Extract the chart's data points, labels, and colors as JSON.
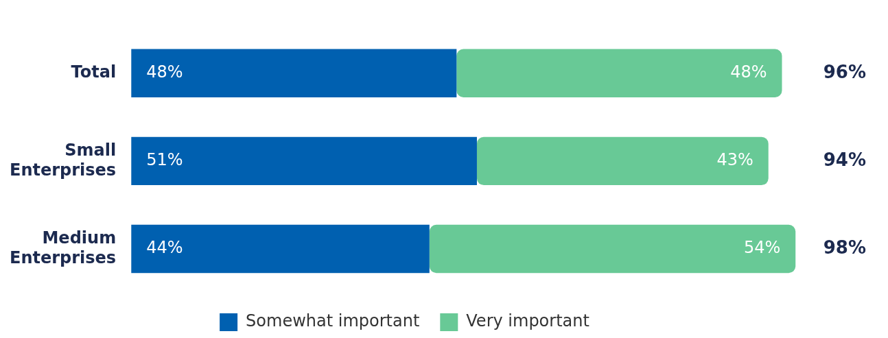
{
  "chart_data": {
    "type": "bar",
    "orientation": "horizontal",
    "stacked": true,
    "categories": [
      "Total",
      "Small Enterprises",
      "Medium Enterprises"
    ],
    "series": [
      {
        "name": "Somewhat important",
        "color": "#0060b0",
        "values": [
          48,
          51,
          44
        ],
        "value_labels": [
          "48%",
          "51%",
          "44%"
        ]
      },
      {
        "name": "Very important",
        "color": "#68c996",
        "values": [
          48,
          43,
          54
        ],
        "value_labels": [
          "48%",
          "43%",
          "54%"
        ]
      }
    ],
    "totals": [
      "96%",
      "94%",
      "98%"
    ],
    "legend": "bottom"
  }
}
